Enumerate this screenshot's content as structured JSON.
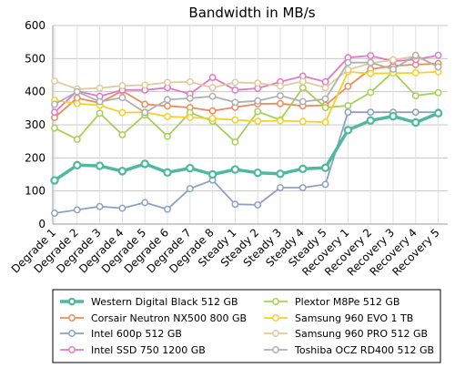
{
  "chart_data": {
    "type": "line",
    "title": "Bandwidth in MB/s",
    "xlabel": "",
    "ylabel": "",
    "ylim": [
      0,
      600
    ],
    "yticks": [
      0,
      100,
      200,
      300,
      400,
      500,
      600
    ],
    "grid": true,
    "legend_position": "bottom",
    "categories": [
      "Degrade 1",
      "Degrade 2",
      "Degrade 3",
      "Degrade 4",
      "Degrade 5",
      "Degrade 6",
      "Degrade 7",
      "Degrade 8",
      "Steady 1",
      "Steady 2",
      "Steady 3",
      "Steady 4",
      "Steady 5",
      "Recovery 1",
      "Recovery 2",
      "Recovery 3",
      "Recovery 4",
      "Recovery 5"
    ],
    "series": [
      {
        "name": "Western Digital Black 512 GB",
        "color": "#4fb99f",
        "bold": true,
        "values": [
          132,
          178,
          176,
          160,
          182,
          156,
          169,
          150,
          165,
          155,
          152,
          167,
          170,
          284,
          313,
          326,
          307,
          335
        ]
      },
      {
        "name": "Corsair Neutron NX500 800 GB",
        "color": "#f08a5d",
        "values": [
          322,
          381,
          366,
          403,
          362,
          357,
          352,
          342,
          353,
          363,
          364,
          357,
          359,
          416,
          468,
          478,
          482,
          485
        ]
      },
      {
        "name": "Intel 600p 512 GB",
        "color": "#8ea0c8",
        "values": [
          33,
          43,
          53,
          48,
          65,
          45,
          107,
          133,
          60,
          58,
          110,
          110,
          120,
          338,
          338,
          338,
          338,
          338
        ]
      },
      {
        "name": "Intel SSD 750 1200 GB",
        "color": "#e27ac7",
        "values": [
          338,
          402,
          386,
          405,
          405,
          412,
          393,
          443,
          405,
          410,
          430,
          447,
          430,
          503,
          509,
          492,
          497,
          510
        ]
      },
      {
        "name": "Plextor M8Pe 512 GB",
        "color": "#a6d055",
        "values": [
          290,
          256,
          335,
          270,
          330,
          265,
          337,
          311,
          248,
          340,
          315,
          412,
          352,
          358,
          398,
          460,
          388,
          397
        ]
      },
      {
        "name": "Samsung 960 EVO 1 TB",
        "color": "#f5d02a",
        "values": [
          374,
          364,
          359,
          337,
          338,
          325,
          322,
          319,
          315,
          311,
          312,
          310,
          308,
          460,
          455,
          456,
          457,
          460
        ]
      },
      {
        "name": "Samsung 960 PRO 512 GB",
        "color": "#e2c99e",
        "values": [
          432,
          408,
          411,
          418,
          420,
          428,
          430,
          412,
          428,
          426,
          417,
          431,
          412,
          466,
          486,
          496,
          507,
          475
        ]
      },
      {
        "name": "Toshiba OCZ RD400 512 GB",
        "color": "#b0b0b0",
        "values": [
          362,
          400,
          370,
          382,
          337,
          376,
          380,
          386,
          368,
          372,
          388,
          370,
          378,
          488,
          488,
          468,
          510,
          475
        ]
      }
    ]
  }
}
